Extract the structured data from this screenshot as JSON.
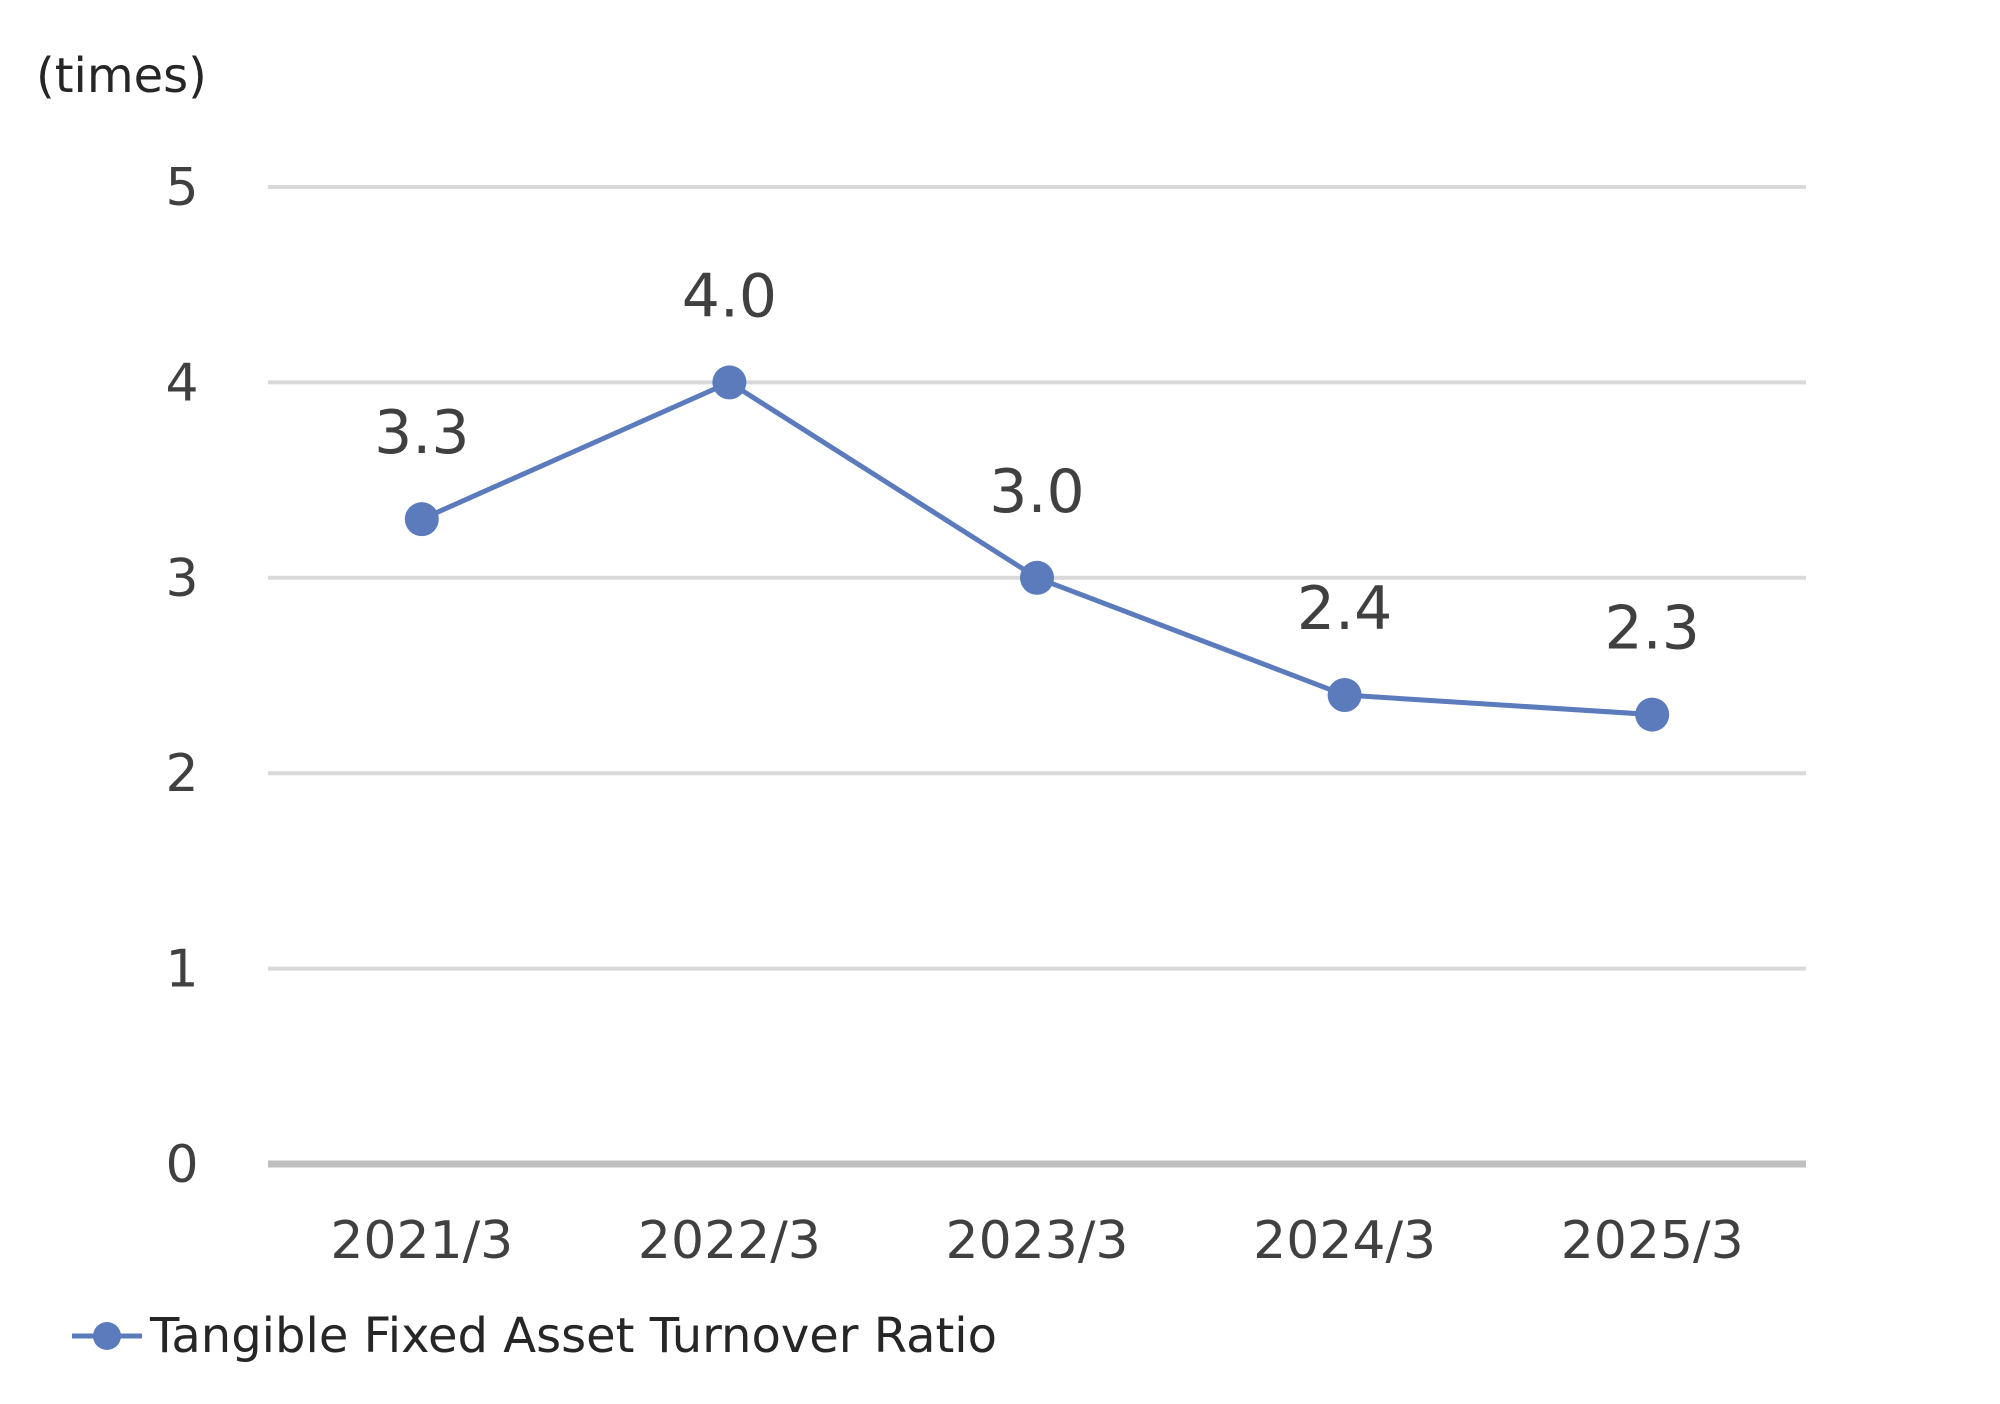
{
  "chart_data": {
    "type": "line",
    "unit_label": "(times)",
    "categories": [
      "2021/3",
      "2022/3",
      "2023/3",
      "2024/3",
      "2025/3"
    ],
    "series": [
      {
        "name": "Tangible Fixed Asset Turnover Ratio",
        "values": [
          3.3,
          4.0,
          3.0,
          2.4,
          2.3
        ],
        "data_labels": [
          "3.3",
          "4.0",
          "3.0",
          "2.4",
          "2.3"
        ],
        "color": "#5b7bbd"
      }
    ],
    "ylim": [
      0,
      5
    ],
    "yticks": [
      "0",
      "1",
      "2",
      "3",
      "4",
      "5"
    ],
    "grid": true,
    "legend_position": "bottom-left"
  }
}
